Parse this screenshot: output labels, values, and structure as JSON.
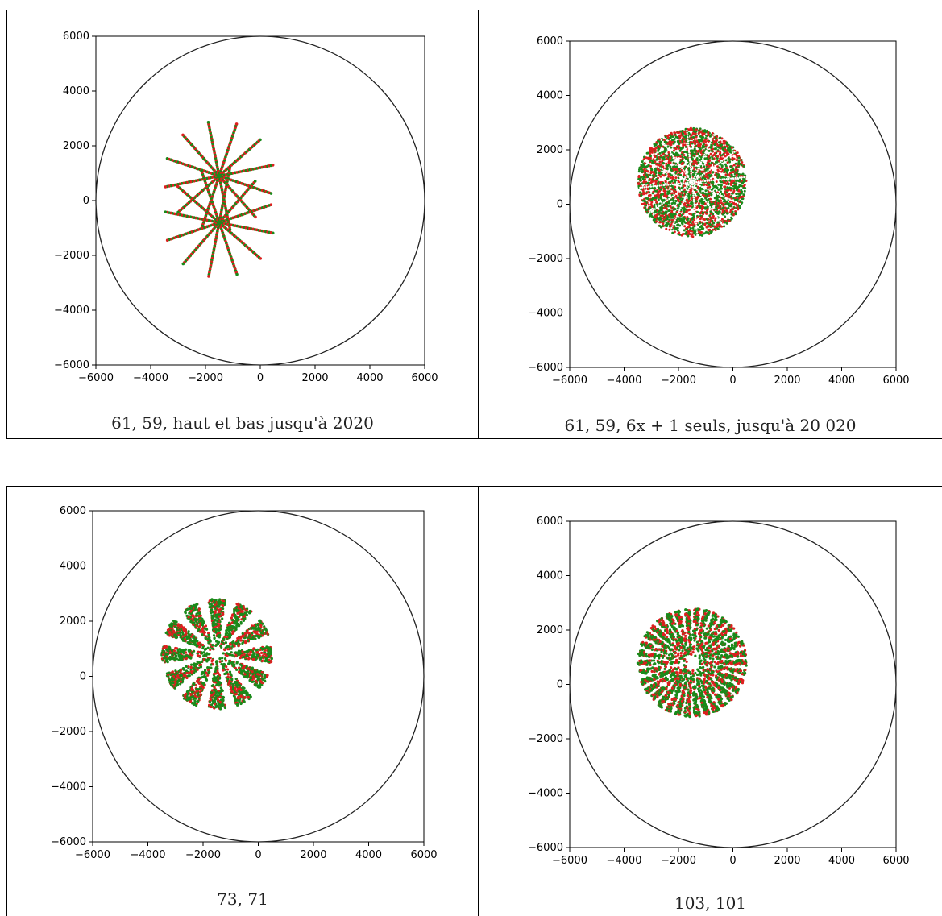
{
  "chart_data": [
    {
      "type": "scatter",
      "title": "",
      "caption": "61,  59,  haut  et  bas  jusqu'à  2020",
      "xlim": [
        -6000,
        6000
      ],
      "ylim": [
        -6000,
        6000
      ],
      "xticks": [
        "−6000",
        "−4000",
        "−2000",
        "0",
        "2000",
        "4000",
        "6000"
      ],
      "yticks": [
        "6000",
        "4000",
        "2000",
        "0",
        "−2000",
        "−4000",
        "−6000"
      ],
      "circle": {
        "cx": 0,
        "cy": 0,
        "r": 6000
      },
      "pattern": "rays-two-centers",
      "centers": [
        [
          -1500,
          900
        ],
        [
          -1500,
          -800
        ]
      ],
      "ray_length": 2000,
      "rays_per_center": 12,
      "series": [
        {
          "name": "",
          "color": "#dd1f1f"
        },
        {
          "name": "",
          "color": "#1a8a1a"
        }
      ]
    },
    {
      "type": "scatter",
      "title": "",
      "caption": "61,  59,  6x + 1 seuls,  jusqu'à  20 020",
      "xlim": [
        -6000,
        6000
      ],
      "ylim": [
        -6000,
        6000
      ],
      "xticks": [
        "−6000",
        "−4000",
        "−2000",
        "0",
        "2000",
        "4000",
        "6000"
      ],
      "yticks": [
        "6000",
        "4000",
        "2000",
        "0",
        "−2000",
        "−4000",
        "−6000"
      ],
      "circle": {
        "cx": 0,
        "cy": 0,
        "r": 6000
      },
      "pattern": "filled-disc",
      "disc": {
        "cx": -1500,
        "cy": 800,
        "r": 2000
      },
      "series": [
        {
          "name": "",
          "color": "#dd1f1f"
        },
        {
          "name": "",
          "color": "#1a8a1a"
        }
      ]
    },
    {
      "type": "scatter",
      "title": "",
      "caption": "73,  71",
      "xlim": [
        -6000,
        6000
      ],
      "ylim": [
        -6000,
        6000
      ],
      "xticks": [
        "−6000",
        "−4000",
        "−2000",
        "0",
        "2000",
        "4000",
        "6000"
      ],
      "yticks": [
        "6000",
        "4000",
        "2000",
        "0",
        "−2000",
        "−4000",
        "−6000"
      ],
      "circle": {
        "cx": 0,
        "cy": 0,
        "r": 6000
      },
      "pattern": "wedges",
      "disc": {
        "cx": -1500,
        "cy": 800,
        "r": 2000
      },
      "wedges": 12,
      "series": [
        {
          "name": "",
          "color": "#dd1f1f"
        },
        {
          "name": "",
          "color": "#1a8a1a"
        }
      ]
    },
    {
      "type": "scatter",
      "title": "",
      "caption": "103,  101",
      "xlim": [
        -6000,
        6000
      ],
      "ylim": [
        -6000,
        6000
      ],
      "xticks": [
        "−6000",
        "−4000",
        "−2000",
        "0",
        "2000",
        "4000",
        "6000"
      ],
      "yticks": [
        "6000",
        "4000",
        "2000",
        "0",
        "−2000",
        "−4000",
        "−6000"
      ],
      "circle": {
        "cx": 0,
        "cy": 0,
        "r": 6000
      },
      "pattern": "wedges",
      "disc": {
        "cx": -1500,
        "cy": 800,
        "r": 2000
      },
      "wedges": 34,
      "series": [
        {
          "name": "",
          "color": "#dd1f1f"
        },
        {
          "name": "",
          "color": "#1a8a1a"
        }
      ]
    }
  ]
}
